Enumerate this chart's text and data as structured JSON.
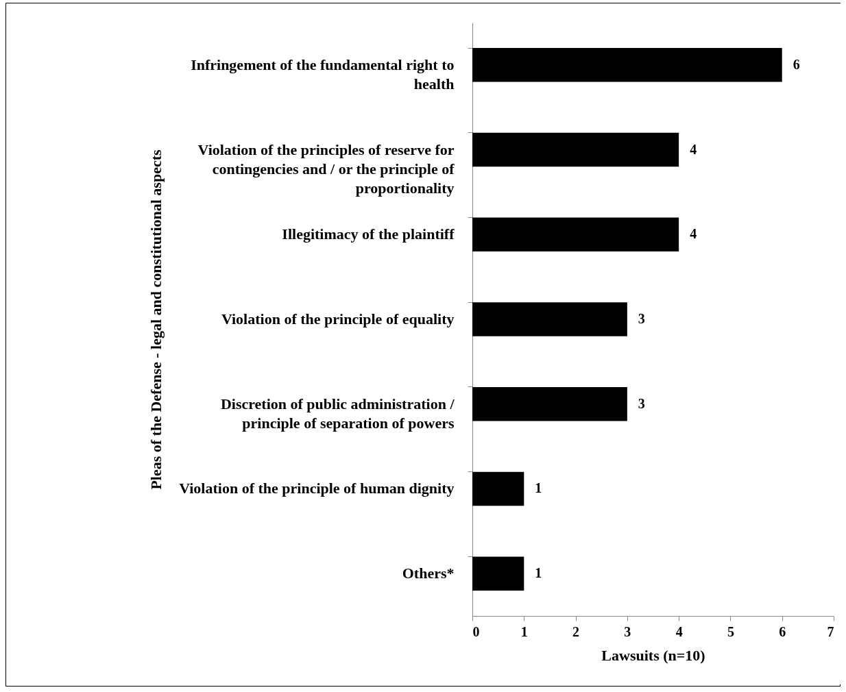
{
  "chart_data": {
    "type": "bar",
    "orientation": "horizontal",
    "xlabel": "Lawsuits (n=10)",
    "ylabel": "Pleas of the Defense - legal and constitutional aspects",
    "categories": [
      "Infringement of the fundamental right to health",
      "Violation of the principles of reserve for contingencies and / or the principle of proportionality",
      "Illegitimacy of the plaintiff",
      "Violation of the principle of equality",
      "Discretion of public administration / principle of separation of powers",
      "Violation of the principle of human dignity",
      "Others*"
    ],
    "values": [
      6,
      4,
      4,
      3,
      3,
      1,
      1
    ],
    "color": "#000000",
    "xlim": [
      0,
      7
    ],
    "xticks": [
      0,
      1,
      2,
      3,
      4,
      5,
      6,
      7
    ],
    "data_labels": true,
    "grid": false
  }
}
